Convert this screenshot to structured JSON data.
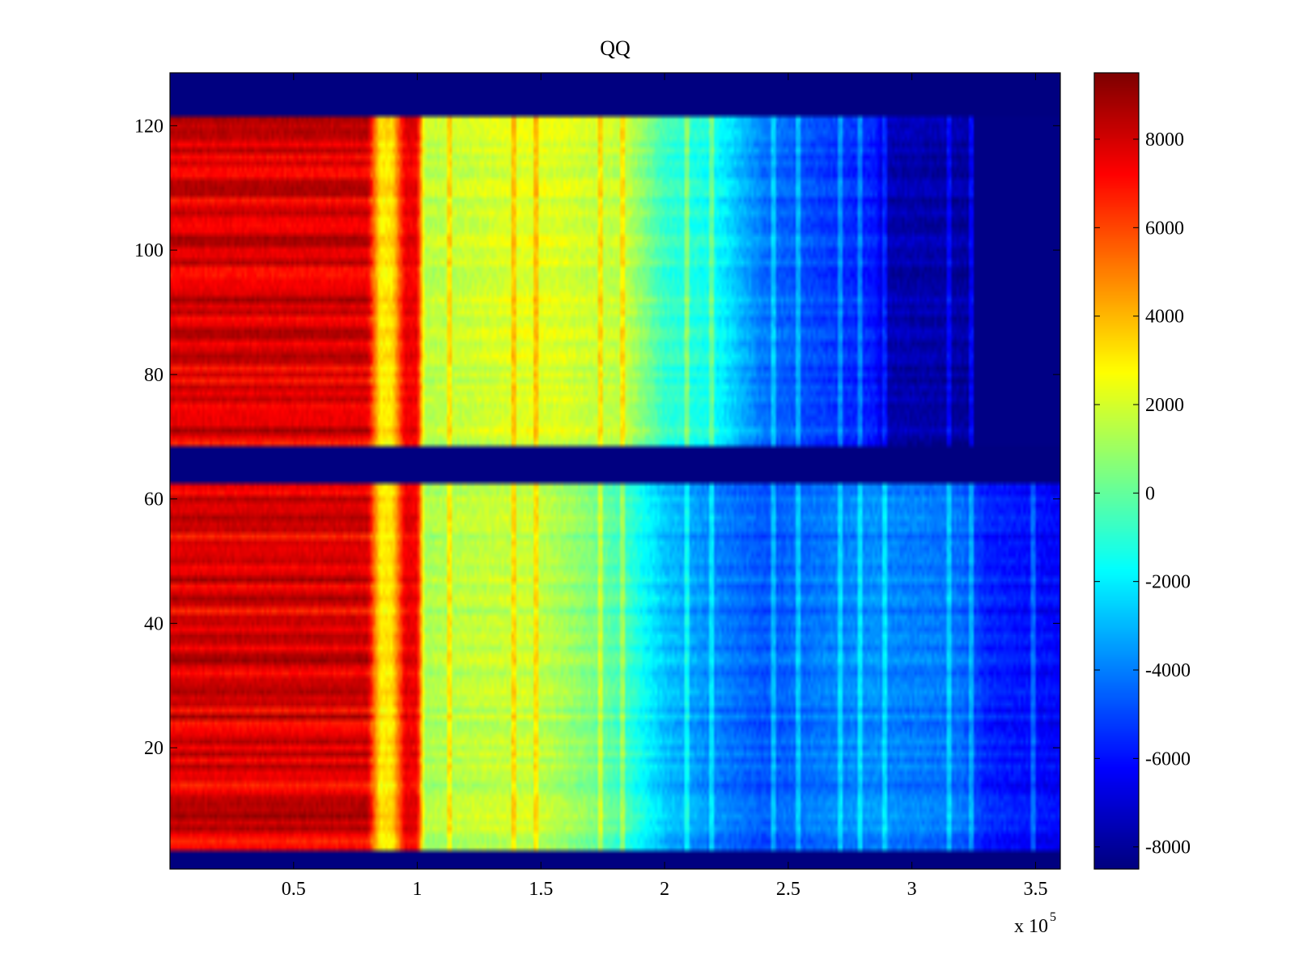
{
  "chart_data": {
    "type": "heatmap",
    "title": "QQ",
    "xlabel": "",
    "ylabel": "",
    "xlim": [
      0,
      3.6
    ],
    "ylim": [
      0.5,
      128.5
    ],
    "x_multiplier_label": "x 10",
    "x_multiplier_exponent": "5",
    "x_ticks": [
      {
        "value": 0.5,
        "label": "0.5"
      },
      {
        "value": 1,
        "label": "1"
      },
      {
        "value": 1.5,
        "label": "1.5"
      },
      {
        "value": 2,
        "label": "2"
      },
      {
        "value": 2.5,
        "label": "2.5"
      },
      {
        "value": 3,
        "label": "3"
      },
      {
        "value": 3.5,
        "label": "3.5"
      }
    ],
    "y_ticks": [
      {
        "value": 20,
        "label": "20"
      },
      {
        "value": 40,
        "label": "40"
      },
      {
        "value": 60,
        "label": "60"
      },
      {
        "value": 80,
        "label": "80"
      },
      {
        "value": 100,
        "label": "100"
      },
      {
        "value": 120,
        "label": "120"
      }
    ],
    "colormap": "jet",
    "clim": [
      -8500,
      9500
    ],
    "colorbar_ticks": [
      {
        "value": 8000,
        "label": "8000"
      },
      {
        "value": 6000,
        "label": "6000"
      },
      {
        "value": 4000,
        "label": "4000"
      },
      {
        "value": 2000,
        "label": "2000"
      },
      {
        "value": 0,
        "label": "0"
      },
      {
        "value": -2000,
        "label": "-2000"
      },
      {
        "value": -4000,
        "label": "-4000"
      },
      {
        "value": -6000,
        "label": "-6000"
      },
      {
        "value": -8000,
        "label": "-8000"
      }
    ],
    "empty_row_value": -8500,
    "empty_row_ranges": [
      [
        0.5,
        3.5
      ],
      [
        62.5,
        68.5
      ],
      [
        121.5,
        128.5
      ]
    ],
    "profile_x": [
      0,
      0.8,
      0.85,
      0.9,
      0.95,
      1.0,
      1.03,
      1.2,
      1.45,
      1.6,
      1.7,
      1.85,
      2.0,
      2.2,
      2.4,
      2.6,
      2.85,
      2.9,
      3.2,
      3.3,
      3.6
    ],
    "profile_upper": [
      7800,
      7800,
      3000,
      3200,
      7600,
      7400,
      1500,
      1800,
      2300,
      2100,
      1800,
      1600,
      -800,
      -1500,
      -4200,
      -5000,
      -5800,
      -7600,
      -7900,
      -8300,
      -8400
    ],
    "profile_lower": [
      7800,
      7800,
      3000,
      3200,
      7600,
      7400,
      1200,
      1600,
      1800,
      1100,
      500,
      -800,
      -2800,
      -3900,
      -4800,
      -4200,
      -3700,
      -3900,
      -4300,
      -5700,
      -6300
    ],
    "bright_column_x": [
      1.13,
      1.39,
      1.48,
      1.74,
      1.83,
      2.09,
      2.19,
      2.44,
      2.54,
      2.71,
      2.79,
      2.89,
      3.15,
      3.24,
      3.49
    ]
  }
}
